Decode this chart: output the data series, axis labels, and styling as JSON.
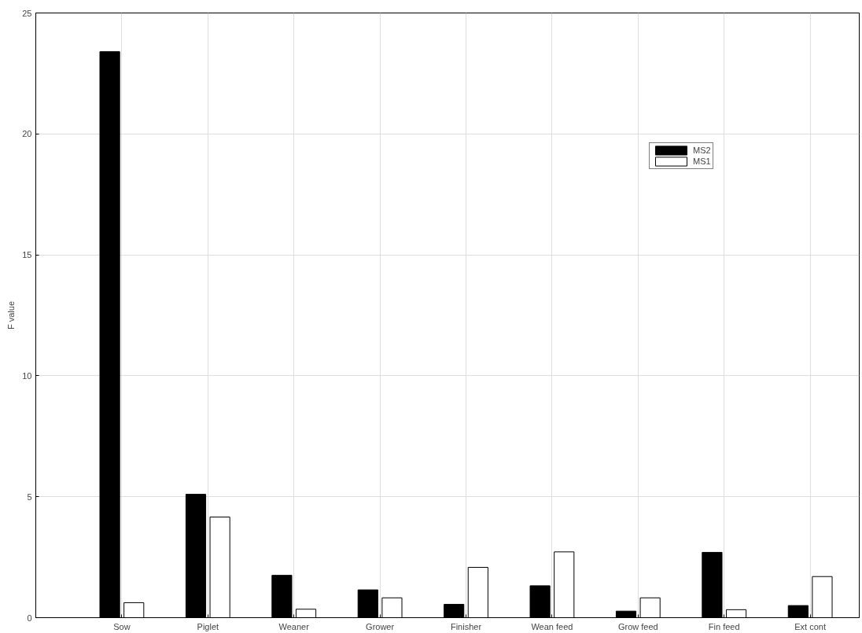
{
  "chart_data": {
    "type": "bar",
    "ylabel": "F value",
    "categories": [
      "Sow",
      "Piglet",
      "Weaner",
      "Grower",
      "Finisher",
      "Wean feed",
      "Grow feed",
      "Fin feed",
      "Ext cont"
    ],
    "series": [
      {
        "name": "MS2",
        "color": "#000000",
        "values": [
          23.4,
          5.1,
          1.75,
          1.15,
          0.55,
          1.32,
          0.27,
          2.7,
          0.5
        ]
      },
      {
        "name": "MS1",
        "color": "#ffffff",
        "values": [
          0.62,
          4.16,
          0.35,
          0.82,
          2.08,
          2.72,
          0.82,
          0.33,
          1.7
        ]
      }
    ],
    "ylim": [
      0,
      25
    ],
    "yticks": [
      0,
      5,
      10,
      15,
      20,
      25
    ],
    "grid": true,
    "legend": "top right"
  }
}
